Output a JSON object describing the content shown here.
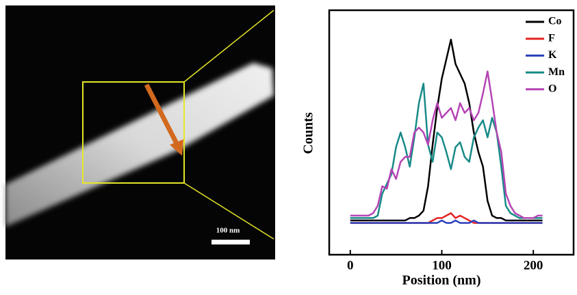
{
  "image": {
    "scale_bar": "100 nm"
  },
  "chart_data": {
    "type": "line",
    "x_label": "Position (nm)",
    "y_label": "Counts",
    "x": [
      0,
      5,
      10,
      15,
      20,
      25,
      30,
      35,
      40,
      45,
      50,
      55,
      60,
      65,
      70,
      75,
      80,
      85,
      90,
      95,
      100,
      105,
      110,
      115,
      120,
      125,
      130,
      135,
      140,
      145,
      150,
      155,
      160,
      165,
      170,
      175,
      180,
      185,
      190,
      195,
      200,
      205,
      210
    ],
    "xlim": [
      -23,
      244
    ],
    "xticks": [
      0,
      100,
      200
    ],
    "ylim": [
      0,
      100
    ],
    "legend": "upper right",
    "series": [
      {
        "name": "Co",
        "color": "#000000",
        "values": [
          14,
          14,
          14,
          14,
          14,
          14,
          14,
          14,
          14,
          14,
          14,
          14,
          14,
          15,
          15,
          16,
          18,
          28,
          45,
          60,
          72,
          80,
          88,
          78,
          74,
          70,
          62,
          50,
          42,
          36,
          22,
          16,
          15,
          15,
          14,
          14,
          14,
          14,
          14,
          14,
          14,
          14,
          14
        ]
      },
      {
        "name": "F",
        "color": "#e52222",
        "values": [
          13,
          13,
          13,
          13,
          13,
          13,
          13,
          13,
          13,
          13,
          13,
          13,
          13,
          13,
          13,
          13,
          13,
          13,
          14,
          15,
          15,
          16,
          17,
          15,
          16,
          15,
          14,
          13,
          13,
          13,
          13,
          13,
          13,
          13,
          13,
          13,
          13,
          13,
          13,
          13,
          13,
          13,
          13
        ]
      },
      {
        "name": "K",
        "color": "#2a3fb8",
        "values": [
          13,
          13,
          13,
          13,
          13,
          13,
          13,
          13,
          13,
          13,
          13,
          13,
          13,
          13,
          13,
          13,
          13,
          13,
          13,
          13,
          14,
          13,
          13,
          14,
          13,
          13,
          13,
          14,
          13,
          13,
          13,
          13,
          13,
          13,
          13,
          13,
          13,
          13,
          13,
          13,
          13,
          13,
          13
        ]
      },
      {
        "name": "Mn",
        "color": "#178a87",
        "values": [
          15,
          15,
          15,
          15,
          15,
          15,
          16,
          25,
          29,
          33,
          44,
          50,
          44,
          36,
          48,
          62,
          70,
          45,
          38,
          50,
          48,
          42,
          35,
          44,
          46,
          40,
          38,
          48,
          52,
          55,
          48,
          56,
          50,
          36,
          20,
          17,
          16,
          15,
          15,
          15,
          15,
          15,
          15
        ]
      },
      {
        "name": "O",
        "color": "#b444b4",
        "values": [
          16,
          16,
          16,
          16,
          16,
          17,
          20,
          28,
          27,
          35,
          31,
          38,
          40,
          40,
          50,
          52,
          50,
          45,
          55,
          62,
          56,
          58,
          60,
          55,
          62,
          58,
          60,
          55,
          58,
          66,
          75,
          63,
          50,
          42,
          25,
          20,
          17,
          16,
          15,
          15,
          15,
          16,
          16
        ]
      }
    ]
  }
}
